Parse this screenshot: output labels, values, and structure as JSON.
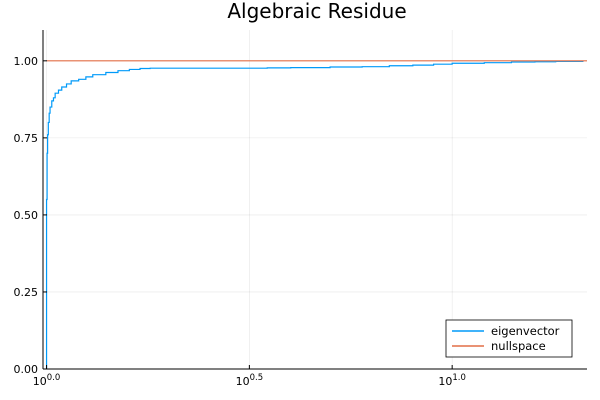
{
  "chart_data": {
    "type": "line",
    "title": "Algebraic Residue",
    "xlabel": "",
    "ylabel": "",
    "x_scale": "log10",
    "xlim": [
      0.98,
      21.5
    ],
    "ylim": [
      0.0,
      1.1
    ],
    "x_ticks": [
      {
        "value": 1.0,
        "base": "10",
        "exponent": "0.0"
      },
      {
        "value": 3.1623,
        "base": "10",
        "exponent": "0.5"
      },
      {
        "value": 10.0,
        "base": "10",
        "exponent": "1.0"
      }
    ],
    "y_ticks": [
      {
        "value": 0.0,
        "label": "0.00"
      },
      {
        "value": 0.25,
        "label": "0.25"
      },
      {
        "value": 0.5,
        "label": "0.50"
      },
      {
        "value": 0.75,
        "label": "0.75"
      },
      {
        "value": 1.0,
        "label": "1.00"
      }
    ],
    "grid": true,
    "legend_position": "bottom-right",
    "series": [
      {
        "name": "eigenvector",
        "color": "#009af9",
        "x": [
          1.0,
          1.0,
          1.003,
          1.006,
          1.01,
          1.015,
          1.02,
          1.03,
          1.04,
          1.05,
          1.07,
          1.09,
          1.12,
          1.15,
          1.2,
          1.25,
          1.3,
          1.4,
          1.5,
          1.6,
          1.7,
          1.8,
          2.0,
          2.5,
          3.0,
          3.5,
          4.0,
          5.0,
          6.0,
          7.0,
          8.0,
          9.0,
          10.0,
          12.0,
          14.0,
          16.0,
          18.0,
          21.0
        ],
        "y": [
          0.0,
          0.55,
          0.7,
          0.76,
          0.8,
          0.83,
          0.85,
          0.87,
          0.88,
          0.895,
          0.905,
          0.915,
          0.925,
          0.935,
          0.94,
          0.948,
          0.955,
          0.962,
          0.968,
          0.972,
          0.975,
          0.976,
          0.976,
          0.976,
          0.976,
          0.977,
          0.978,
          0.98,
          0.981,
          0.984,
          0.986,
          0.989,
          0.992,
          0.994,
          0.996,
          0.997,
          0.998,
          1.0
        ]
      },
      {
        "name": "nullspace",
        "color": "#e26f46",
        "x": [
          1.0,
          21.5
        ],
        "y": [
          1.0,
          1.0
        ]
      }
    ]
  }
}
